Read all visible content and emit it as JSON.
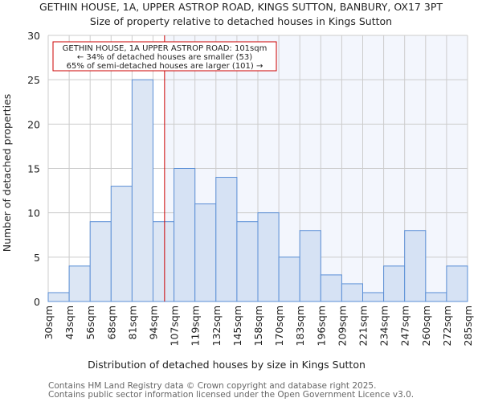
{
  "chart_data": {
    "type": "bar",
    "title": "GETHIN HOUSE, 1A, UPPER ASTROP ROAD, KINGS SUTTON, BANBURY, OX17 3PT",
    "subtitle": "Size of property relative to detached houses in Kings Sutton",
    "xlabel": "Distribution of detached houses by size in Kings Sutton",
    "ylabel": "Number of detached properties",
    "ylim": [
      0,
      30
    ],
    "yticks": [
      0,
      5,
      10,
      15,
      20,
      25,
      30
    ],
    "tick_labels": [
      "30sqm",
      "43sqm",
      "56sqm",
      "68sqm",
      "81sqm",
      "94sqm",
      "107sqm",
      "119sqm",
      "132sqm",
      "145sqm",
      "158sqm",
      "170sqm",
      "183sqm",
      "196sqm",
      "209sqm",
      "221sqm",
      "234sqm",
      "247sqm",
      "260sqm",
      "272sqm",
      "285sqm"
    ],
    "values": [
      1,
      4,
      9,
      13,
      25,
      9,
      15,
      11,
      14,
      9,
      10,
      5,
      8,
      3,
      2,
      1,
      4,
      8,
      1,
      4
    ],
    "grid": true,
    "marker_value_sqm": 101,
    "marker_bin_position": 5.55,
    "annotation": {
      "line1": "GETHIN HOUSE, 1A UPPER ASTROP ROAD: 101sqm",
      "line2": "← 34% of detached houses are smaller (53)",
      "line3": "65% of semi-detached houses are larger (101) →"
    },
    "colors": {
      "bar_fill": "#dce6f4",
      "bar_fill_right": "#d6e2f4",
      "bar_edge": "#5b8fd6",
      "marker": "#cc0000",
      "highlight_bg": "#f3f6fd",
      "grid": "#cccccc"
    }
  },
  "footer": {
    "line1": "Contains HM Land Registry data © Crown copyright and database right 2025.",
    "line2": "Contains public sector information licensed under the Open Government Licence v3.0."
  }
}
